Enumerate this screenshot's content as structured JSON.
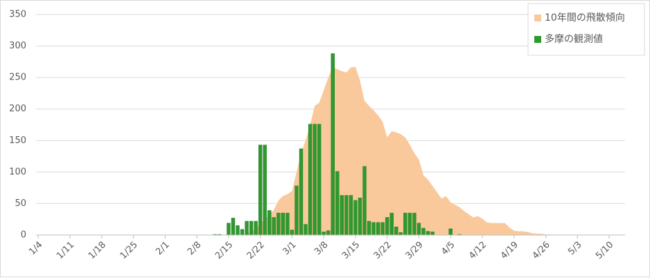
{
  "chart_data": {
    "type": "combo",
    "categories": [
      "1/4",
      null,
      null,
      null,
      null,
      null,
      null,
      "1/11",
      null,
      null,
      null,
      null,
      null,
      null,
      "1/18",
      null,
      null,
      null,
      null,
      null,
      null,
      "1/25",
      null,
      null,
      null,
      null,
      null,
      null,
      "2/1",
      null,
      null,
      null,
      null,
      null,
      null,
      "2/8",
      null,
      null,
      null,
      null,
      null,
      null,
      "2/15",
      null,
      null,
      null,
      null,
      null,
      null,
      "2/22",
      null,
      null,
      null,
      null,
      null,
      null,
      "3/1",
      null,
      null,
      null,
      null,
      null,
      null,
      "3/8",
      null,
      null,
      null,
      null,
      null,
      null,
      "3/15",
      null,
      null,
      null,
      null,
      null,
      null,
      "3/22",
      null,
      null,
      null,
      null,
      null,
      null,
      "3/29",
      null,
      null,
      null,
      null,
      null,
      null,
      "4/5",
      null,
      null,
      null,
      null,
      null,
      null,
      "4/12",
      null,
      null,
      null,
      null,
      null,
      null,
      "4/19",
      null,
      null,
      null,
      null,
      null,
      null,
      "4/26",
      null,
      null,
      null,
      null,
      null,
      null,
      "5/3",
      null,
      null,
      null,
      null,
      null,
      null,
      "5/10",
      null,
      null,
      null
    ],
    "series": [
      {
        "name": "10年間の飛散傾向",
        "type": "area",
        "color": "#f9c99b",
        "values": [
          0,
          0,
          0,
          0,
          0,
          0,
          0,
          0,
          0,
          0,
          0,
          0,
          0,
          0,
          0,
          0,
          0,
          0,
          0,
          0,
          0,
          0,
          0,
          0,
          0,
          0,
          0,
          0,
          0,
          0,
          0,
          0,
          0,
          0,
          0,
          0,
          0,
          0,
          0,
          0,
          0,
          0,
          0,
          0,
          0,
          0,
          2,
          5,
          10,
          18,
          25,
          32,
          40,
          55,
          62,
          65,
          70,
          100,
          130,
          150,
          175,
          205,
          210,
          230,
          250,
          267,
          263,
          260,
          258,
          266,
          267,
          245,
          213,
          205,
          198,
          190,
          180,
          155,
          165,
          163,
          160,
          155,
          143,
          130,
          120,
          95,
          88,
          78,
          68,
          58,
          62,
          52,
          48,
          44,
          38,
          33,
          28,
          30,
          26,
          20,
          19,
          19,
          19,
          19,
          12,
          7,
          6,
          6,
          5,
          3,
          2,
          2,
          1,
          1,
          0,
          0,
          0,
          0,
          0,
          0,
          0,
          0,
          0,
          0,
          0,
          0,
          0,
          0,
          0,
          0
        ]
      },
      {
        "name": "多摩の観測値",
        "type": "bar",
        "color": "#2e9a2e",
        "values": [
          0,
          0,
          0,
          0,
          0,
          0,
          0,
          0,
          0,
          0,
          0,
          0,
          0,
          0,
          0,
          0,
          0,
          0,
          0,
          0,
          0,
          0,
          0,
          0,
          0,
          0,
          0,
          0,
          0,
          0,
          0,
          0,
          0,
          0,
          0,
          0,
          0,
          0,
          0,
          1,
          1,
          0,
          19,
          27,
          15,
          9,
          22,
          22,
          22,
          143,
          143,
          39,
          28,
          35,
          35,
          35,
          8,
          78,
          137,
          17,
          176,
          176,
          176,
          5,
          7,
          288,
          101,
          63,
          63,
          63,
          55,
          59,
          109,
          22,
          20,
          20,
          20,
          28,
          35,
          13,
          4,
          35,
          35,
          35,
          19,
          11,
          6,
          5,
          0,
          0,
          0,
          10,
          0,
          1,
          0,
          0,
          0,
          0,
          0,
          0,
          0,
          0,
          0,
          0,
          0,
          0,
          0,
          0,
          0,
          0,
          0,
          0,
          0,
          0,
          0,
          0,
          0,
          0,
          0,
          0,
          0,
          0,
          0,
          0,
          0,
          0,
          0,
          0,
          0,
          0
        ]
      }
    ],
    "ylim": [
      0,
      350
    ],
    "yticks": [
      0,
      50,
      100,
      150,
      200,
      250,
      300,
      350
    ],
    "grid": true,
    "legend": "top-right"
  }
}
